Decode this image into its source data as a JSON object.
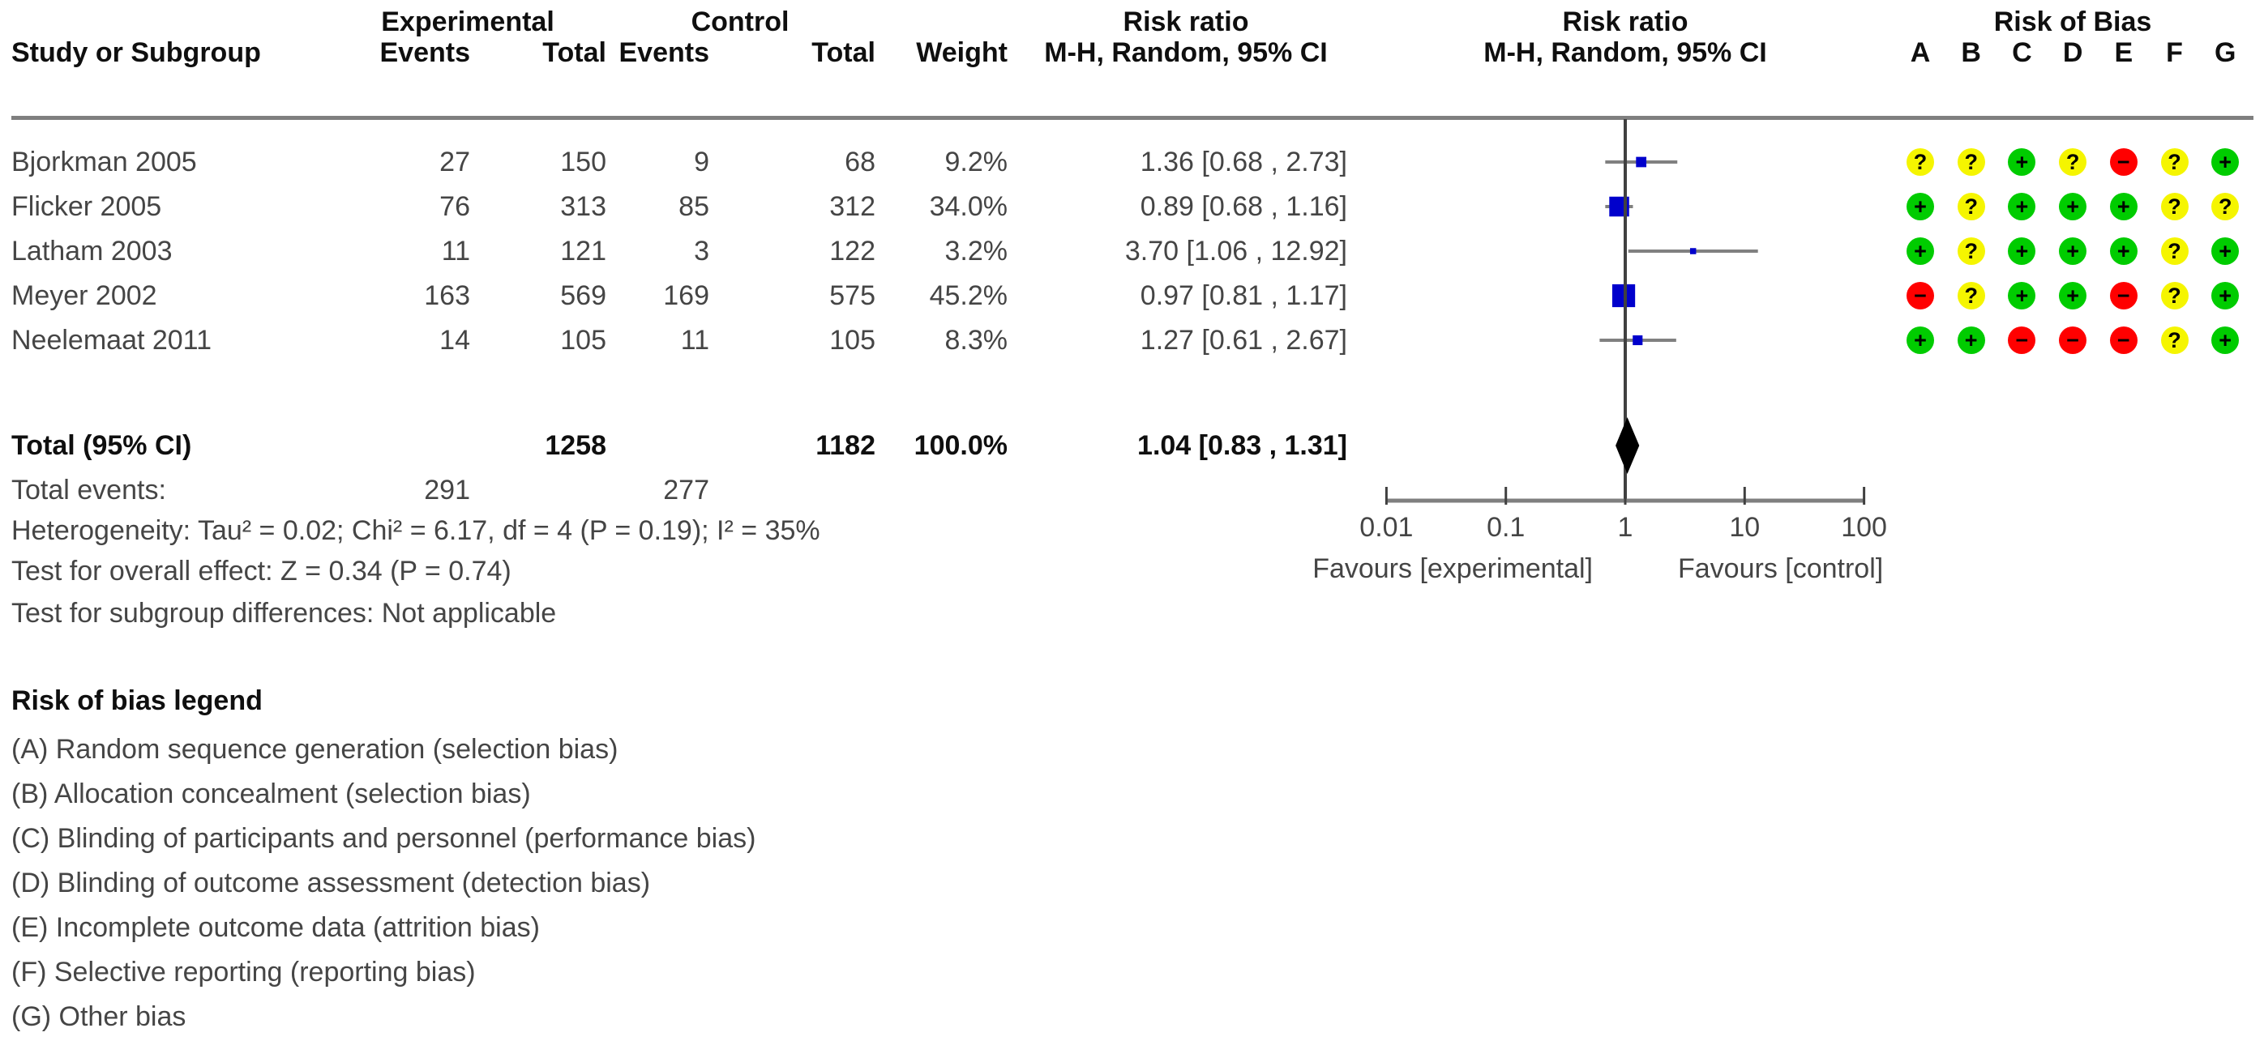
{
  "table": {
    "headers": {
      "group_experimental": "Experimental",
      "group_control": "Control",
      "col_study": "Study or Subgroup",
      "col_events": "Events",
      "col_total": "Total",
      "col_weight": "Weight",
      "rr_title": "Risk ratio",
      "rr_method": "M-H, Random, 95% CI",
      "plot_title": "Risk ratio",
      "plot_method": "M-H, Random, 95% CI",
      "rob_title": "Risk of Bias",
      "rob_columns": [
        "A",
        "B",
        "C",
        "D",
        "E",
        "F",
        "G"
      ]
    },
    "total_row": {
      "label": "Total (95% CI)",
      "total_exp": "1258",
      "total_ctl": "1182",
      "weight": "100.0%",
      "rr_text": "1.04 [0.83 , 1.31]"
    },
    "total_events": {
      "label": "Total events:",
      "exp": "291",
      "ctl": "277"
    },
    "footnotes": [
      "Heterogeneity: Tau² = 0.02; Chi² = 6.17, df = 4 (P = 0.19); I² = 35%",
      "Test for overall effect: Z = 0.34 (P = 0.74)",
      "Test for subgroup differences: Not applicable"
    ]
  },
  "chart_data": {
    "type": "forest",
    "effect_measure": "Risk ratio",
    "method": "M-H, Random, 95% CI",
    "x_scale": "log10",
    "xlim": [
      0.01,
      100
    ],
    "axis_ticks": [
      0.01,
      0.1,
      1,
      10,
      100
    ],
    "axis_tick_labels": [
      "0.01",
      "0.1",
      "1",
      "10",
      "100"
    ],
    "favours_left": "Favours [experimental]",
    "favours_right": "Favours [control]",
    "studies": [
      {
        "name": "Bjorkman 2005",
        "events_exp": "27",
        "total_exp": "150",
        "events_ctl": "9",
        "total_ctl": "68",
        "weight": "9.2%",
        "rr": 1.36,
        "ci_low": 0.68,
        "ci_high": 2.73,
        "rr_text": "1.36 [0.68 , 2.73]",
        "rob": [
          "?",
          "?",
          "+",
          "?",
          "-",
          "?",
          "+"
        ]
      },
      {
        "name": "Flicker 2005",
        "events_exp": "76",
        "total_exp": "313",
        "events_ctl": "85",
        "total_ctl": "312",
        "weight": "34.0%",
        "rr": 0.89,
        "ci_low": 0.68,
        "ci_high": 1.16,
        "rr_text": "0.89 [0.68 , 1.16]",
        "rob": [
          "+",
          "?",
          "+",
          "+",
          "+",
          "?",
          "?"
        ]
      },
      {
        "name": "Latham 2003",
        "events_exp": "11",
        "total_exp": "121",
        "events_ctl": "3",
        "total_ctl": "122",
        "weight": "3.2%",
        "rr": 3.7,
        "ci_low": 1.06,
        "ci_high": 12.92,
        "rr_text": "3.70 [1.06 , 12.92]",
        "rob": [
          "+",
          "?",
          "+",
          "+",
          "+",
          "?",
          "+"
        ]
      },
      {
        "name": "Meyer 2002",
        "events_exp": "163",
        "total_exp": "569",
        "events_ctl": "169",
        "total_ctl": "575",
        "weight": "45.2%",
        "rr": 0.97,
        "ci_low": 0.81,
        "ci_high": 1.17,
        "rr_text": "0.97 [0.81 , 1.17]",
        "rob": [
          "-",
          "?",
          "+",
          "+",
          "-",
          "?",
          "+"
        ]
      },
      {
        "name": "Neelemaat 2011",
        "events_exp": "14",
        "total_exp": "105",
        "events_ctl": "11",
        "total_ctl": "105",
        "weight": "8.3%",
        "rr": 1.27,
        "ci_low": 0.61,
        "ci_high": 2.67,
        "rr_text": "1.27 [0.61 , 2.67]",
        "rob": [
          "+",
          "+",
          "-",
          "-",
          "-",
          "?",
          "+"
        ]
      }
    ],
    "total": {
      "rr": 1.04,
      "ci_low": 0.83,
      "ci_high": 1.31
    }
  },
  "rob_legend": {
    "title": "Risk of bias legend",
    "items": [
      "(A) Random sequence generation (selection bias)",
      "(B) Allocation concealment (selection bias)",
      "(C) Blinding of participants and personnel (performance bias)",
      "(D) Blinding of outcome assessment (detection bias)",
      "(E) Incomplete outcome data (attrition bias)",
      "(F) Selective reporting (reporting bias)",
      "(G) Other bias"
    ]
  },
  "colors": {
    "square": "#0000cc",
    "ci_line": "#808080",
    "no_effect_line": "#404040",
    "axis_line": "#7f7f7f",
    "diamond": "#000000",
    "rob_low": "#00cc00",
    "rob_high": "#ff0000",
    "rob_unclear": "#f5f500",
    "text": "#454545",
    "header_text": "#0f0f0f"
  }
}
